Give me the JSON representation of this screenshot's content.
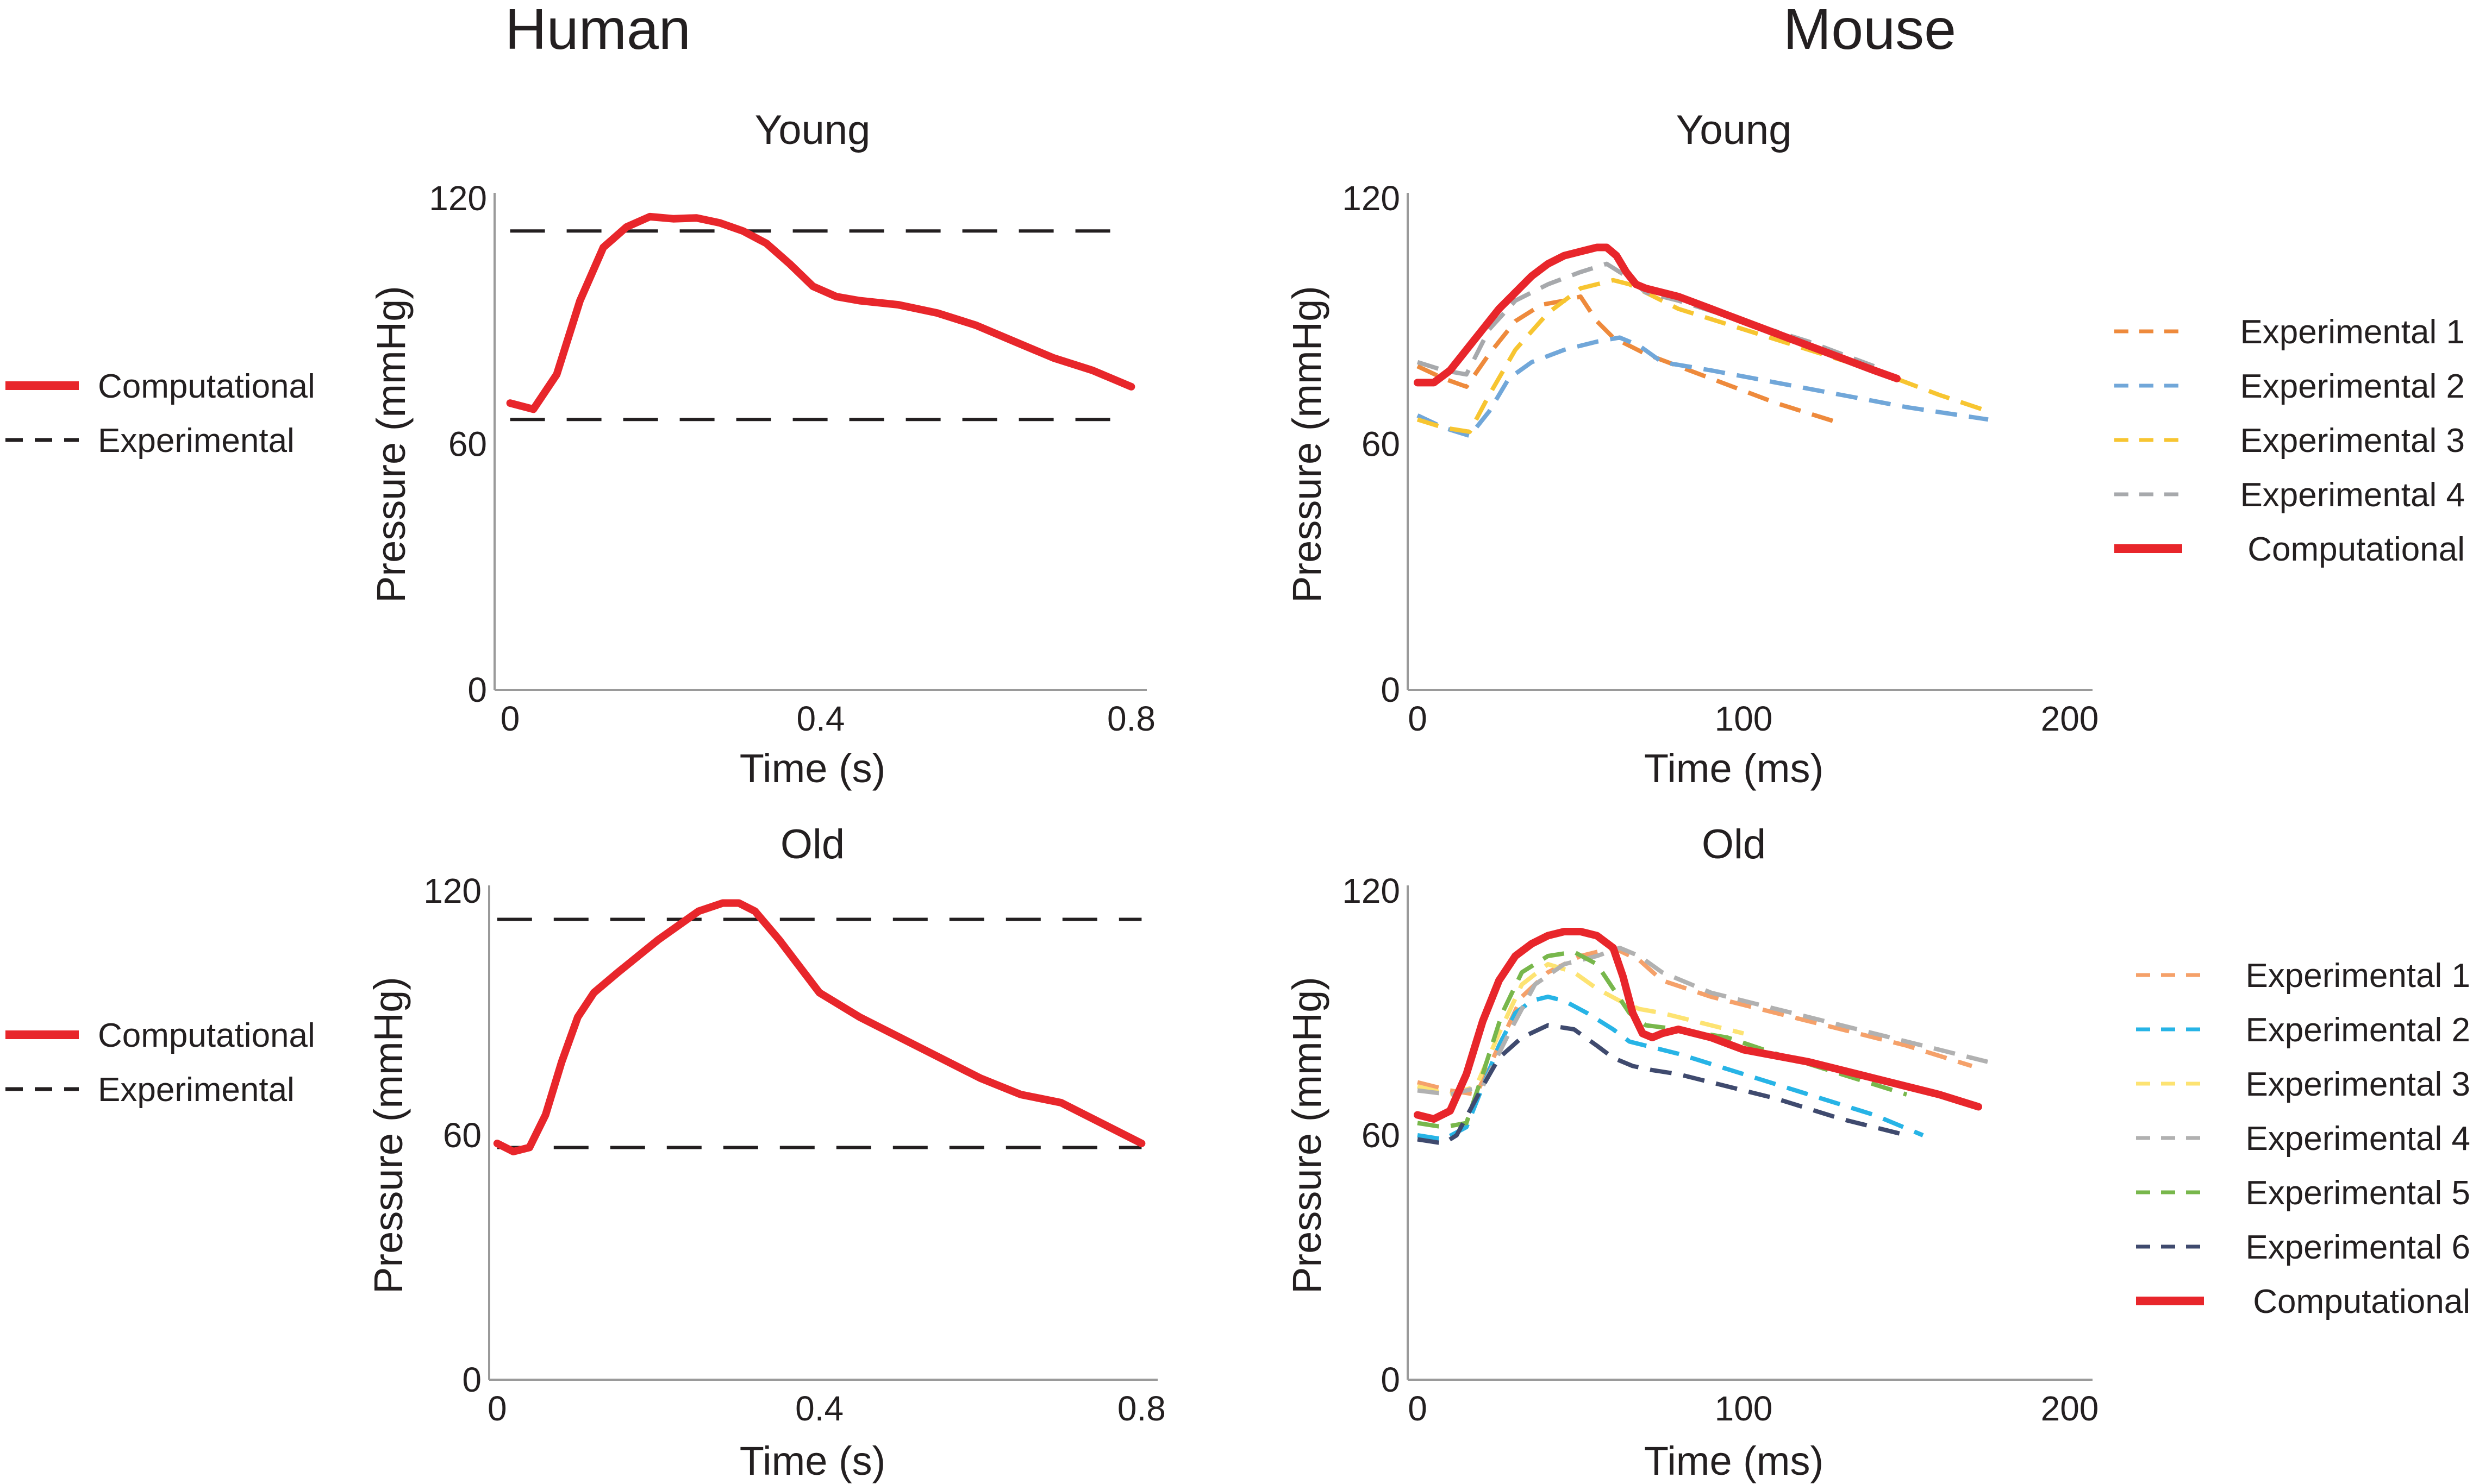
{
  "titles": {
    "left": "Human",
    "right": "Mouse"
  },
  "chart_data": [
    {
      "type": "line",
      "title": "Young",
      "xlabel": "Time (s)",
      "ylabel": "Pressure (mmHg)",
      "xlim": [
        -0.02,
        0.82
      ],
      "ylim": [
        0,
        120
      ],
      "xticks": [
        0,
        0.4,
        0.8
      ],
      "xtick_labels": [
        "0",
        "0.4",
        "0.8"
      ],
      "yticks": [
        0,
        60,
        120
      ],
      "ytick_labels": [
        "0",
        "60",
        "120"
      ],
      "legend_position": "left",
      "legend": [
        "Computational",
        "Experimental"
      ],
      "series": [
        {
          "name": "Computational",
          "color": "#e8262b",
          "style": "solid",
          "x": [
            0,
            0.03,
            0.06,
            0.09,
            0.12,
            0.15,
            0.18,
            0.21,
            0.24,
            0.27,
            0.3,
            0.33,
            0.36,
            0.39,
            0.42,
            0.45,
            0.5,
            0.55,
            0.6,
            0.65,
            0.7,
            0.75,
            0.8
          ],
          "y": [
            70,
            68.5,
            77,
            95,
            108,
            113,
            115.5,
            115,
            115.2,
            114,
            112,
            109,
            104,
            98.5,
            96,
            95,
            94,
            92,
            89,
            85,
            81,
            78,
            74
          ]
        },
        {
          "name": "Experimental",
          "color": "#231f20",
          "style": "dashed",
          "x": [
            0,
            0.8
          ],
          "y": [
            112,
            112
          ]
        },
        {
          "name": "Experimental",
          "color": "#231f20",
          "style": "dashed",
          "x": [
            0,
            0.8
          ],
          "y": [
            66,
            66
          ]
        }
      ]
    },
    {
      "type": "line",
      "title": "Young",
      "xlabel": "Time (ms)",
      "ylabel": "Pressure (mmHg)",
      "xlim": [
        -3,
        207
      ],
      "ylim": [
        0,
        120
      ],
      "xticks": [
        0,
        100,
        200
      ],
      "xtick_labels": [
        "0",
        "100",
        "200"
      ],
      "yticks": [
        0,
        60,
        120
      ],
      "ytick_labels": [
        "0",
        "60",
        "120"
      ],
      "legend_position": "right",
      "legend": [
        "Experimental 1",
        "Experimental 2",
        "Experimental 3",
        "Experimental 4",
        "Computational"
      ],
      "series": [
        {
          "name": "Experimental 1",
          "color": "#ee8a3c",
          "style": "dashed",
          "x": [
            0,
            8,
            15,
            22,
            30,
            38,
            45,
            50,
            55,
            60,
            70,
            90,
            110,
            130
          ],
          "y": [
            79,
            76,
            74,
            82,
            90,
            94,
            95,
            96,
            90,
            86,
            82,
            76,
            70,
            65
          ]
        },
        {
          "name": "Experimental 2",
          "color": "#71a7d9",
          "style": "dashed",
          "x": [
            0,
            8,
            16,
            22,
            28,
            35,
            45,
            55,
            62,
            68,
            75,
            90,
            110,
            130,
            150,
            175
          ],
          "y": [
            67,
            64,
            62,
            68,
            76,
            80,
            83,
            85,
            86,
            84,
            80,
            78,
            75,
            72,
            69,
            66
          ]
        },
        {
          "name": "Experimental 3",
          "color": "#f7c531",
          "style": "dashed",
          "x": [
            0,
            8,
            16,
            22,
            30,
            40,
            50,
            60,
            65,
            70,
            80,
            100,
            120,
            140,
            160,
            175
          ],
          "y": [
            66,
            64,
            63,
            72,
            83,
            92,
            98,
            100,
            99,
            97,
            93,
            88,
            83,
            78,
            72,
            68
          ]
        },
        {
          "name": "Experimental 4",
          "color": "#a7a9ac",
          "style": "dashed",
          "x": [
            0,
            8,
            15,
            22,
            30,
            40,
            50,
            58,
            64,
            70,
            80,
            100,
            120,
            140
          ],
          "y": [
            80,
            78,
            77,
            88,
            95,
            99,
            102,
            104,
            101,
            97,
            95,
            90,
            85,
            79
          ]
        },
        {
          "name": "Computational",
          "color": "#e8262b",
          "style": "solid",
          "x": [
            0,
            5,
            10,
            15,
            20,
            25,
            30,
            35,
            40,
            45,
            50,
            55,
            58,
            61,
            64,
            67,
            70,
            80,
            90,
            100,
            110,
            120,
            130,
            140,
            147
          ],
          "y": [
            75,
            75,
            78,
            83,
            88,
            93,
            97,
            101,
            104,
            106,
            107,
            108,
            108,
            106,
            102,
            99,
            98,
            96,
            93,
            90,
            87,
            84,
            81,
            78,
            76
          ]
        }
      ]
    },
    {
      "type": "line",
      "title": "Old",
      "xlabel": "Time (s)",
      "ylabel": "Pressure (mmHg)",
      "xlim": [
        -0.01,
        0.82
      ],
      "ylim": [
        0,
        120
      ],
      "xticks": [
        0,
        0.4,
        0.8
      ],
      "xtick_labels": [
        "0",
        "0.4",
        "0.8"
      ],
      "yticks": [
        0,
        60,
        120
      ],
      "ytick_labels": [
        "0",
        "60",
        "120"
      ],
      "legend_position": "left",
      "legend": [
        "Computational",
        "Experimental"
      ],
      "series": [
        {
          "name": "Computational",
          "color": "#e8262b",
          "style": "solid",
          "x": [
            0,
            0.02,
            0.04,
            0.06,
            0.08,
            0.1,
            0.12,
            0.15,
            0.2,
            0.25,
            0.28,
            0.3,
            0.32,
            0.35,
            0.4,
            0.45,
            0.5,
            0.55,
            0.6,
            0.65,
            0.7,
            0.75,
            0.8
          ],
          "y": [
            58,
            56,
            57,
            65,
            78,
            89,
            95,
            100,
            108,
            115,
            117,
            117,
            115,
            108,
            95,
            89,
            84,
            79,
            74,
            70,
            68,
            63,
            58
          ]
        },
        {
          "name": "Experimental",
          "color": "#231f20",
          "style": "dashed",
          "x": [
            0,
            0.8
          ],
          "y": [
            113,
            113
          ]
        },
        {
          "name": "Experimental",
          "color": "#231f20",
          "style": "dashed",
          "x": [
            0,
            0.8
          ],
          "y": [
            57,
            57
          ]
        }
      ]
    },
    {
      "type": "line",
      "title": "Old",
      "xlabel": "Time (ms)",
      "ylabel": "Pressure (mmHg)",
      "xlim": [
        -3,
        207
      ],
      "ylim": [
        0,
        120
      ],
      "xticks": [
        0,
        100,
        200
      ],
      "xtick_labels": [
        "0",
        "100",
        "200"
      ],
      "yticks": [
        0,
        60,
        120
      ],
      "ytick_labels": [
        "0",
        "60",
        "120"
      ],
      "legend_position": "right",
      "legend": [
        "Experimental 1",
        "Experimental 2",
        "Experimental 3",
        "Experimental 4",
        "Experimental 5",
        "Experimental 6",
        "Computational"
      ],
      "series": [
        {
          "name": "Experimental 1",
          "color": "#f5a16a",
          "style": "dashed",
          "x": [
            0,
            10,
            18,
            25,
            32,
            40,
            50,
            60,
            68,
            75,
            90,
            110,
            130,
            150,
            170
          ],
          "y": [
            73,
            71,
            70,
            82,
            94,
            100,
            104,
            106,
            103,
            98,
            94,
            90,
            86,
            82,
            77
          ]
        },
        {
          "name": "Experimental 2",
          "color": "#27b4e6",
          "style": "dashed",
          "x": [
            0,
            8,
            15,
            20,
            25,
            30,
            35,
            40,
            45,
            52,
            60,
            65,
            70,
            80,
            100,
            120,
            140,
            155
          ],
          "y": [
            60,
            59,
            62,
            72,
            82,
            90,
            93,
            94,
            93,
            90,
            86,
            83,
            82,
            80,
            75,
            70,
            65,
            60
          ]
        },
        {
          "name": "Experimental 3",
          "color": "#fde372",
          "style": "dashed",
          "x": [
            0,
            10,
            18,
            25,
            32,
            40,
            48,
            55,
            62,
            68,
            75,
            85,
            100
          ],
          "y": [
            72,
            70,
            72,
            85,
            97,
            102,
            100,
            96,
            93,
            91,
            90,
            88,
            85
          ]
        },
        {
          "name": "Experimental 4",
          "color": "#b1b1b1",
          "style": "dashed",
          "x": [
            0,
            10,
            20,
            28,
            36,
            45,
            55,
            62,
            68,
            75,
            90,
            110,
            130,
            150,
            175
          ],
          "y": [
            71,
            70,
            72,
            85,
            97,
            102,
            104,
            106,
            104,
            100,
            95,
            91,
            87,
            83,
            78
          ]
        },
        {
          "name": "Experimental 5",
          "color": "#78b74c",
          "style": "dashed",
          "x": [
            0,
            8,
            15,
            20,
            26,
            32,
            40,
            48,
            55,
            60,
            65,
            70,
            80,
            95,
            110,
            130,
            150
          ],
          "y": [
            63,
            62,
            63,
            75,
            90,
            100,
            104,
            105,
            102,
            96,
            90,
            87,
            86,
            84,
            80,
            75,
            70
          ]
        },
        {
          "name": "Experimental 6",
          "color": "#3f4a6e",
          "style": "dashed",
          "x": [
            0,
            8,
            12,
            16,
            20,
            25,
            32,
            40,
            48,
            55,
            60,
            66,
            72,
            80,
            95,
            110,
            130,
            150
          ],
          "y": [
            59,
            58,
            60,
            66,
            72,
            79,
            84,
            87,
            86,
            82,
            79,
            77,
            76,
            75,
            72,
            69,
            64,
            60
          ]
        },
        {
          "name": "Computational",
          "color": "#e8262b",
          "style": "solid",
          "x": [
            0,
            5,
            10,
            15,
            20,
            25,
            30,
            35,
            40,
            45,
            50,
            55,
            60,
            63,
            66,
            69,
            72,
            75,
            80,
            90,
            100,
            120,
            140,
            160,
            172
          ],
          "y": [
            65,
            64,
            66,
            75,
            88,
            98,
            104,
            107,
            109,
            110,
            110,
            109,
            106,
            99,
            90,
            85,
            84,
            85,
            86,
            84,
            81,
            78,
            74,
            70,
            67
          ]
        }
      ]
    }
  ]
}
